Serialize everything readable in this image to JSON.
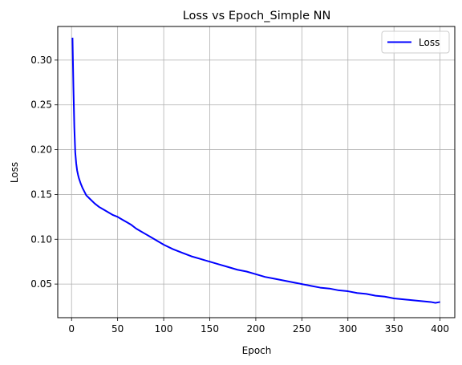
{
  "chart_data": {
    "type": "line",
    "title": "Loss vs Epoch_Simple NN",
    "xlabel": "Epoch",
    "ylabel": "Loss",
    "xlim": [
      -15,
      416
    ],
    "ylim": [
      0.0125,
      0.3375
    ],
    "xticks": [
      0,
      50,
      100,
      150,
      200,
      250,
      300,
      350,
      400
    ],
    "yticks": [
      0.05,
      0.1,
      0.15,
      0.2,
      0.25,
      0.3
    ],
    "ytick_labels": [
      "0.05",
      "0.10",
      "0.15",
      "0.20",
      "0.25",
      "0.30"
    ],
    "grid": true,
    "legend": {
      "position": "top-right"
    },
    "series": [
      {
        "name": "Loss",
        "color": "#0000ff",
        "x": [
          1,
          2,
          3,
          4,
          5,
          6,
          7,
          8,
          10,
          12,
          14,
          16,
          18,
          20,
          25,
          30,
          35,
          40,
          45,
          50,
          55,
          60,
          65,
          70,
          75,
          80,
          85,
          90,
          95,
          100,
          110,
          120,
          130,
          140,
          150,
          160,
          170,
          180,
          190,
          200,
          210,
          220,
          230,
          240,
          250,
          260,
          270,
          280,
          290,
          300,
          310,
          320,
          330,
          340,
          350,
          360,
          370,
          380,
          390,
          395,
          400
        ],
        "y": [
          0.325,
          0.27,
          0.225,
          0.197,
          0.185,
          0.177,
          0.172,
          0.168,
          0.162,
          0.157,
          0.153,
          0.149,
          0.147,
          0.145,
          0.14,
          0.136,
          0.133,
          0.13,
          0.127,
          0.125,
          0.122,
          0.119,
          0.116,
          0.112,
          0.109,
          0.106,
          0.103,
          0.1,
          0.097,
          0.094,
          0.089,
          0.085,
          0.081,
          0.078,
          0.075,
          0.072,
          0.069,
          0.066,
          0.064,
          0.061,
          0.058,
          0.056,
          0.054,
          0.052,
          0.05,
          0.048,
          0.046,
          0.045,
          0.043,
          0.042,
          0.04,
          0.039,
          0.037,
          0.036,
          0.034,
          0.033,
          0.032,
          0.031,
          0.03,
          0.029,
          0.03
        ]
      }
    ]
  }
}
